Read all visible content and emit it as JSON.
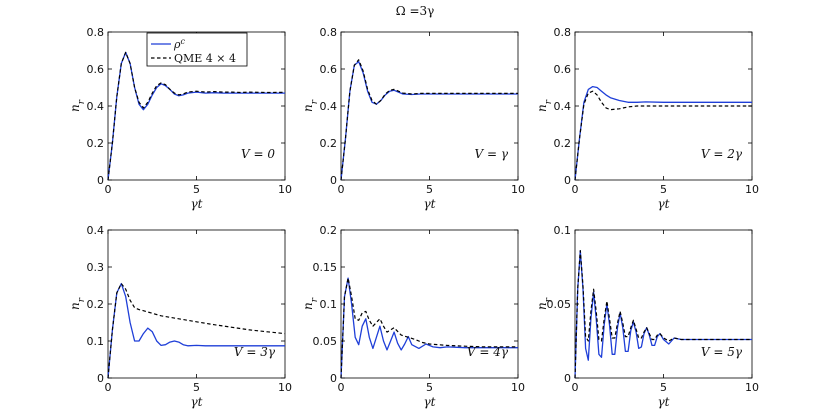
{
  "figure_title": "Ω =3γ",
  "colors": {
    "rho": "#1f3fd8",
    "qme": "#000000"
  },
  "legend": {
    "rho_label": "ρ^c",
    "qme_label": "QME 4 × 4",
    "placement": "top-left of first panel"
  },
  "chart_data": [
    {
      "type": "line",
      "annotation": "V = 0",
      "xlabel": "γt",
      "ylabel": "n_r",
      "xlim": [
        0,
        10
      ],
      "ylim": [
        0,
        0.8
      ],
      "xticks": [
        0,
        5,
        10
      ],
      "yticks": [
        0,
        0.2,
        0.4,
        0.6,
        0.8
      ],
      "ytick_labels": [
        "0",
        "0.2",
        "0.4",
        "0.6",
        "0.8"
      ],
      "series": [
        {
          "name": "ρ^c",
          "style": "solid",
          "x": [
            0,
            0.25,
            0.5,
            0.75,
            1.0,
            1.25,
            1.5,
            1.75,
            2.0,
            2.25,
            2.5,
            2.75,
            3.0,
            3.25,
            3.5,
            3.75,
            4.0,
            4.25,
            4.5,
            5,
            5.5,
            6,
            6.5,
            7,
            7.5,
            8,
            9,
            10
          ],
          "y": [
            0,
            0.2,
            0.45,
            0.63,
            0.69,
            0.63,
            0.5,
            0.41,
            0.38,
            0.41,
            0.46,
            0.5,
            0.52,
            0.51,
            0.49,
            0.465,
            0.455,
            0.46,
            0.47,
            0.475,
            0.47,
            0.472,
            0.47,
            0.47,
            0.47,
            0.47,
            0.47,
            0.47
          ]
        },
        {
          "name": "QME 4 × 4",
          "style": "dashed",
          "x": [
            0,
            0.25,
            0.5,
            0.75,
            1.0,
            1.25,
            1.5,
            1.75,
            2.0,
            2.25,
            2.5,
            2.75,
            3.0,
            3.25,
            3.5,
            3.75,
            4.0,
            4.25,
            4.5,
            5,
            5.5,
            6,
            6.5,
            7,
            7.5,
            8,
            9,
            10
          ],
          "y": [
            0,
            0.2,
            0.45,
            0.63,
            0.69,
            0.63,
            0.5,
            0.42,
            0.39,
            0.42,
            0.47,
            0.51,
            0.525,
            0.515,
            0.49,
            0.47,
            0.46,
            0.465,
            0.475,
            0.48,
            0.475,
            0.478,
            0.475,
            0.475,
            0.473,
            0.475,
            0.473,
            0.474
          ]
        }
      ]
    },
    {
      "type": "line",
      "annotation": "V = γ",
      "xlabel": "γt",
      "ylabel": "n_r",
      "xlim": [
        0,
        10
      ],
      "ylim": [
        0,
        0.8
      ],
      "xticks": [
        0,
        5,
        10
      ],
      "yticks": [
        0,
        0.2,
        0.4,
        0.6,
        0.8
      ],
      "ytick_labels": [
        "0",
        "0.2",
        "0.4",
        "0.6",
        "0.8"
      ],
      "series": [
        {
          "name": "ρ^c",
          "style": "solid",
          "x": [
            0,
            0.25,
            0.5,
            0.75,
            1.0,
            1.25,
            1.5,
            1.75,
            2.0,
            2.25,
            2.5,
            2.75,
            3.0,
            3.25,
            3.5,
            4,
            4.5,
            5,
            6,
            7,
            8,
            9,
            10
          ],
          "y": [
            0,
            0.22,
            0.48,
            0.62,
            0.64,
            0.58,
            0.48,
            0.42,
            0.41,
            0.43,
            0.46,
            0.48,
            0.485,
            0.475,
            0.465,
            0.462,
            0.465,
            0.465,
            0.465,
            0.465,
            0.465,
            0.465,
            0.465
          ]
        },
        {
          "name": "QME 4 × 4",
          "style": "dashed",
          "x": [
            0,
            0.25,
            0.5,
            0.75,
            1.0,
            1.25,
            1.5,
            1.75,
            2.0,
            2.25,
            2.5,
            2.75,
            3.0,
            3.25,
            3.5,
            4,
            4.5,
            5,
            6,
            7,
            8,
            9,
            10
          ],
          "y": [
            0,
            0.22,
            0.48,
            0.62,
            0.65,
            0.59,
            0.49,
            0.43,
            0.41,
            0.43,
            0.465,
            0.485,
            0.49,
            0.48,
            0.47,
            0.465,
            0.468,
            0.468,
            0.468,
            0.468,
            0.468,
            0.468,
            0.468
          ]
        }
      ]
    },
    {
      "type": "line",
      "annotation": "V = 2γ",
      "xlabel": "γt",
      "ylabel": "n_r",
      "xlim": [
        0,
        10
      ],
      "ylim": [
        0,
        0.8
      ],
      "xticks": [
        0,
        5,
        10
      ],
      "yticks": [
        0,
        0.2,
        0.4,
        0.6,
        0.8
      ],
      "ytick_labels": [
        "0",
        "0.2",
        "0.4",
        "0.6",
        "0.8"
      ],
      "series": [
        {
          "name": "ρ^c",
          "style": "solid",
          "x": [
            0,
            0.25,
            0.5,
            0.75,
            1.0,
            1.25,
            1.5,
            1.75,
            2.0,
            2.5,
            3.0,
            3.5,
            4,
            5,
            6,
            7,
            8,
            9,
            10
          ],
          "y": [
            0,
            0.22,
            0.42,
            0.49,
            0.505,
            0.5,
            0.48,
            0.46,
            0.445,
            0.43,
            0.42,
            0.42,
            0.422,
            0.42,
            0.42,
            0.42,
            0.42,
            0.42,
            0.42
          ]
        },
        {
          "name": "QME 4 × 4",
          "style": "dashed",
          "x": [
            0,
            0.25,
            0.5,
            0.75,
            1.0,
            1.25,
            1.5,
            1.75,
            2.0,
            2.5,
            3.0,
            3.5,
            4,
            5,
            6,
            7,
            8,
            9,
            10
          ],
          "y": [
            0,
            0.22,
            0.41,
            0.47,
            0.48,
            0.46,
            0.42,
            0.39,
            0.38,
            0.385,
            0.395,
            0.4,
            0.4,
            0.4,
            0.4,
            0.4,
            0.4,
            0.4,
            0.4
          ]
        }
      ]
    },
    {
      "type": "line",
      "annotation": "V = 3γ",
      "xlabel": "γt",
      "ylabel": "n_r",
      "xlim": [
        0,
        10
      ],
      "ylim": [
        0,
        0.4
      ],
      "xticks": [
        0,
        5,
        10
      ],
      "yticks": [
        0,
        0.1,
        0.2,
        0.3,
        0.4
      ],
      "ytick_labels": [
        "0",
        "0.1",
        "0.2",
        "0.3",
        "0.4"
      ],
      "series": [
        {
          "name": "ρ^c",
          "style": "solid",
          "x": [
            0,
            0.25,
            0.5,
            0.75,
            1.0,
            1.25,
            1.5,
            1.75,
            2.0,
            2.25,
            2.5,
            2.75,
            3.0,
            3.25,
            3.5,
            3.75,
            4.0,
            4.25,
            4.5,
            5,
            5.5,
            6,
            7,
            8,
            9,
            10
          ],
          "y": [
            0,
            0.13,
            0.23,
            0.255,
            0.22,
            0.15,
            0.1,
            0.1,
            0.12,
            0.135,
            0.125,
            0.1,
            0.088,
            0.09,
            0.097,
            0.1,
            0.097,
            0.09,
            0.087,
            0.088,
            0.087,
            0.087,
            0.087,
            0.087,
            0.087,
            0.087
          ]
        },
        {
          "name": "QME 4 × 4",
          "style": "dashed",
          "x": [
            0,
            0.25,
            0.5,
            0.75,
            1.0,
            1.25,
            1.5,
            1.75,
            2.0,
            2.5,
            3,
            4,
            5,
            6,
            7,
            8,
            9,
            10
          ],
          "y": [
            0,
            0.13,
            0.23,
            0.255,
            0.24,
            0.21,
            0.19,
            0.185,
            0.182,
            0.175,
            0.168,
            0.16,
            0.152,
            0.144,
            0.137,
            0.13,
            0.125,
            0.12
          ]
        }
      ]
    },
    {
      "type": "line",
      "annotation": "V = 4γ",
      "xlabel": "γt",
      "ylabel": "n_r",
      "xlim": [
        0,
        10
      ],
      "ylim": [
        0,
        0.2
      ],
      "xticks": [
        0,
        5,
        10
      ],
      "yticks": [
        0,
        0.05,
        0.1,
        0.15,
        0.2
      ],
      "ytick_labels": [
        "0",
        "0.05",
        "0.1",
        "0.15",
        "0.2"
      ],
      "series": [
        {
          "name": "ρ^c",
          "style": "solid",
          "x": [
            0,
            0.2,
            0.4,
            0.6,
            0.8,
            1.0,
            1.2,
            1.4,
            1.6,
            1.8,
            2.0,
            2.2,
            2.4,
            2.6,
            2.8,
            3.0,
            3.2,
            3.4,
            3.6,
            3.8,
            4.0,
            4.4,
            4.8,
            5.2,
            5.6,
            6,
            7,
            8,
            9,
            10
          ],
          "y": [
            0,
            0.11,
            0.135,
            0.1,
            0.055,
            0.045,
            0.07,
            0.08,
            0.055,
            0.04,
            0.055,
            0.07,
            0.05,
            0.038,
            0.05,
            0.062,
            0.047,
            0.038,
            0.046,
            0.056,
            0.045,
            0.04,
            0.046,
            0.042,
            0.041,
            0.042,
            0.041,
            0.041,
            0.041,
            0.041
          ]
        },
        {
          "name": "QME 4 × 4",
          "style": "dashed",
          "x": [
            0,
            0.2,
            0.4,
            0.6,
            0.8,
            1.0,
            1.2,
            1.4,
            1.6,
            1.8,
            2.0,
            2.2,
            2.4,
            2.6,
            2.8,
            3.0,
            3.4,
            3.8,
            4.2,
            4.6,
            5,
            6,
            7,
            8,
            9,
            10
          ],
          "y": [
            0,
            0.11,
            0.135,
            0.11,
            0.08,
            0.078,
            0.088,
            0.09,
            0.078,
            0.07,
            0.075,
            0.08,
            0.07,
            0.062,
            0.065,
            0.068,
            0.058,
            0.055,
            0.052,
            0.048,
            0.046,
            0.044,
            0.043,
            0.042,
            0.042,
            0.042
          ]
        }
      ]
    },
    {
      "type": "line",
      "annotation": "V = 5γ",
      "xlabel": "γt",
      "ylabel": "n_r",
      "xlim": [
        0,
        10
      ],
      "ylim": [
        0,
        0.1
      ],
      "xticks": [
        0,
        5,
        10
      ],
      "yticks": [
        0,
        0.05,
        0.1
      ],
      "ytick_labels": [
        "0",
        "0.05",
        "0.1"
      ],
      "series": [
        {
          "name": "ρ^c",
          "style": "solid",
          "x": [
            0,
            0.15,
            0.3,
            0.45,
            0.6,
            0.75,
            0.9,
            1.05,
            1.2,
            1.35,
            1.5,
            1.65,
            1.8,
            1.95,
            2.1,
            2.25,
            2.4,
            2.55,
            2.7,
            2.85,
            3.0,
            3.15,
            3.3,
            3.45,
            3.6,
            3.75,
            3.9,
            4.05,
            4.2,
            4.35,
            4.5,
            4.65,
            4.8,
            5.0,
            5.3,
            5.6,
            6,
            6.5,
            7,
            8,
            9,
            10
          ],
          "y": [
            0,
            0.06,
            0.086,
            0.06,
            0.02,
            0.012,
            0.04,
            0.058,
            0.04,
            0.016,
            0.014,
            0.036,
            0.05,
            0.036,
            0.016,
            0.016,
            0.034,
            0.044,
            0.034,
            0.018,
            0.018,
            0.032,
            0.038,
            0.031,
            0.02,
            0.021,
            0.03,
            0.034,
            0.029,
            0.022,
            0.022,
            0.028,
            0.03,
            0.026,
            0.023,
            0.027,
            0.026,
            0.026,
            0.026,
            0.026,
            0.026,
            0.026
          ]
        },
        {
          "name": "QME 4 × 4",
          "style": "dashed",
          "x": [
            0,
            0.15,
            0.3,
            0.45,
            0.6,
            0.75,
            0.9,
            1.05,
            1.2,
            1.35,
            1.5,
            1.65,
            1.8,
            1.95,
            2.1,
            2.25,
            2.4,
            2.55,
            2.7,
            2.85,
            3.0,
            3.15,
            3.3,
            3.45,
            3.6,
            3.75,
            3.9,
            4.05,
            4.2,
            4.35,
            4.5,
            4.65,
            4.8,
            5.0,
            5.3,
            5.6,
            6,
            6.5,
            7,
            8,
            9,
            10
          ],
          "y": [
            0,
            0.06,
            0.086,
            0.062,
            0.028,
            0.025,
            0.045,
            0.06,
            0.045,
            0.026,
            0.025,
            0.04,
            0.052,
            0.04,
            0.027,
            0.027,
            0.037,
            0.045,
            0.037,
            0.028,
            0.028,
            0.034,
            0.039,
            0.033,
            0.027,
            0.027,
            0.031,
            0.034,
            0.03,
            0.026,
            0.026,
            0.029,
            0.03,
            0.027,
            0.025,
            0.027,
            0.026,
            0.026,
            0.026,
            0.026,
            0.026,
            0.026
          ]
        }
      ]
    }
  ]
}
